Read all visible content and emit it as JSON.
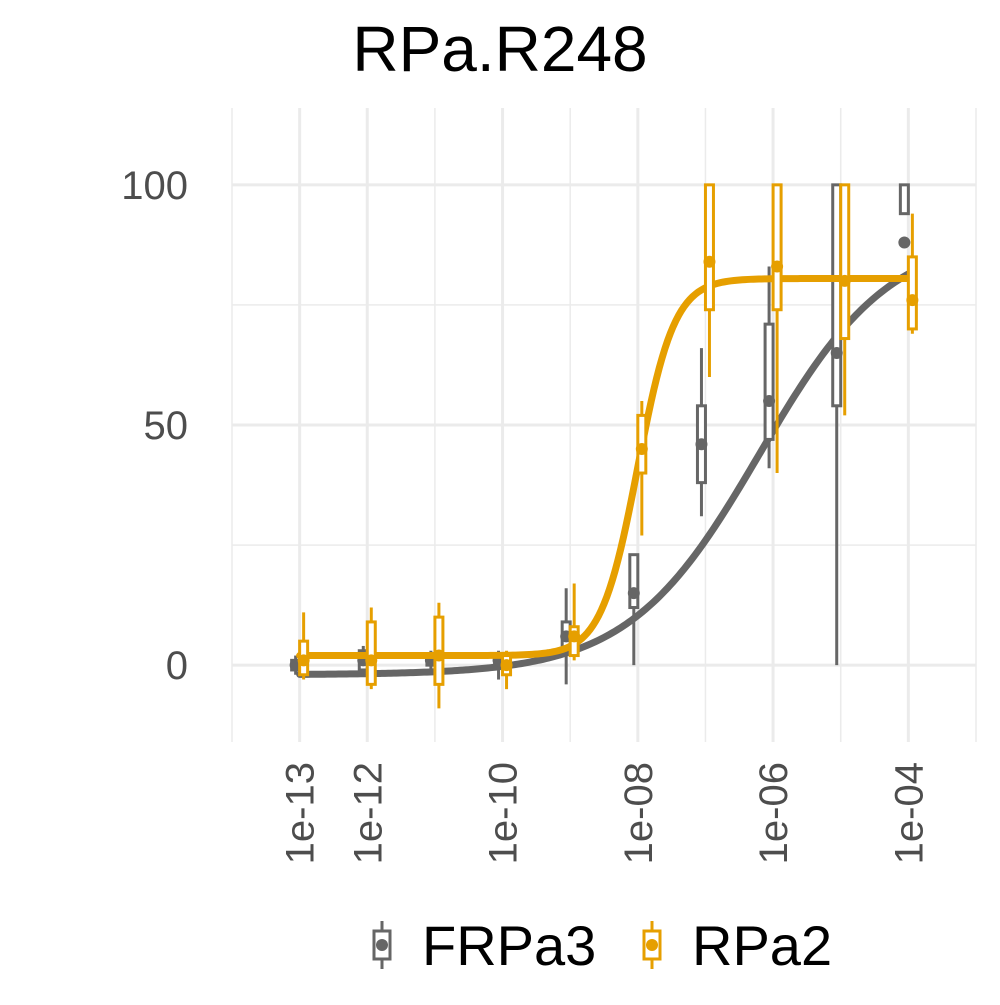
{
  "chart_data": {
    "type": "scatter",
    "title": "RPa.R248",
    "xlabel": "",
    "ylabel": "",
    "x_scale": "log10",
    "xlim": [
      1e-14,
      0.001
    ],
    "ylim": [
      -16,
      116
    ],
    "y_ticks": [
      0,
      50,
      100
    ],
    "y_tick_labels": [
      "0",
      "50",
      "100"
    ],
    "y_minor_ticks": [
      25,
      75
    ],
    "x_ticks": [
      1e-13,
      1e-12,
      1e-10,
      1e-08,
      1e-06,
      0.0001
    ],
    "x_tick_labels": [
      "1e-13",
      "1e-12",
      "1e-10",
      "1e-08",
      "1e-06",
      "1e-04"
    ],
    "x_minor_ticks": [
      1e-14,
      1e-11,
      1e-09,
      1e-07,
      1e-05,
      0.001
    ],
    "grid": true,
    "legend_position": "bottom",
    "series": [
      {
        "name": "FRPa3",
        "color": "#666666",
        "x": [
          1e-13,
          1e-12,
          1e-11,
          1e-10,
          1e-09,
          1e-08,
          1e-07,
          1e-06,
          1e-05,
          0.0001
        ],
        "mean": [
          0,
          1,
          1,
          1,
          6,
          15,
          46,
          55,
          65,
          88
        ],
        "box_low": [
          -1,
          -1,
          0,
          0,
          3,
          12,
          38,
          47,
          54,
          94
        ],
        "box_high": [
          1,
          3,
          2,
          2,
          9,
          23,
          54,
          71,
          100,
          100
        ],
        "whisker_low": [
          -2,
          -2,
          -1,
          -3,
          -4,
          0,
          31,
          41,
          0,
          94
        ],
        "whisker_high": [
          2,
          4,
          3,
          3,
          16,
          23,
          66,
          83,
          100,
          100
        ],
        "fit": {
          "bottom": -2,
          "top": 90,
          "log_ec50": -6.2,
          "hill": 0.45
        }
      },
      {
        "name": "RPa2",
        "color": "#E69F00",
        "x": [
          1e-13,
          1e-12,
          1e-11,
          1e-10,
          1e-09,
          1e-08,
          1e-07,
          1e-06,
          1e-05,
          0.0001
        ],
        "mean": [
          1,
          1,
          2,
          0,
          6,
          45,
          84,
          83,
          80,
          76
        ],
        "box_low": [
          -2,
          -4,
          -4,
          -2,
          2,
          40,
          74,
          74,
          68,
          70
        ],
        "box_high": [
          5,
          9,
          10,
          2,
          8,
          52,
          100,
          100,
          100,
          85
        ],
        "whisker_low": [
          -3,
          -5,
          -9,
          -5,
          1,
          27,
          60,
          40,
          52,
          69
        ],
        "whisker_high": [
          11,
          12,
          13,
          3,
          17,
          55,
          100,
          100,
          100,
          94
        ],
        "fit": {
          "bottom": 2,
          "top": 80.5,
          "log_ec50": -8.0,
          "hill": 1.6
        }
      }
    ]
  }
}
